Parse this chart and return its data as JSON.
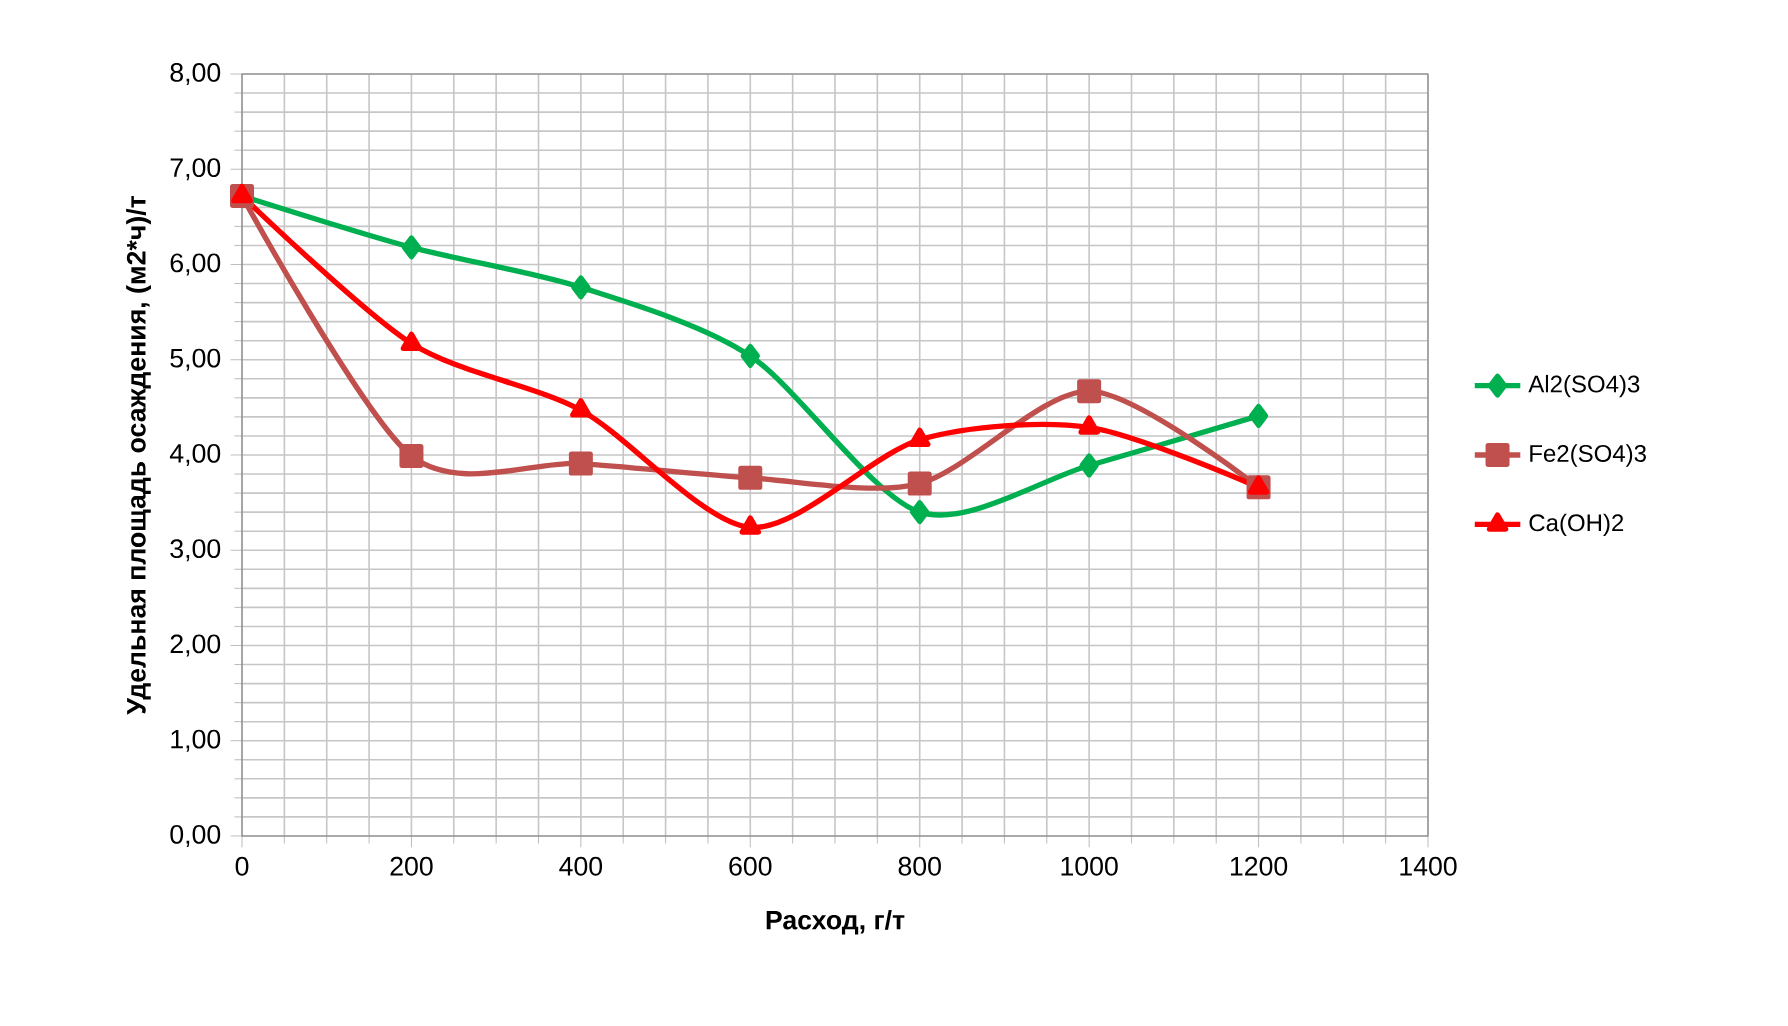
{
  "chart_data": {
    "type": "line",
    "xlabel": "Расход, г/т",
    "ylabel": "Удельная площадь осаждения, (м2*ч)/т",
    "x": [
      0,
      200,
      400,
      600,
      800,
      1000,
      1200
    ],
    "series": [
      {
        "name": "Al2(SO4)3",
        "color": "#00b050",
        "marker": "diamond",
        "values": [
          6.72,
          6.18,
          5.76,
          5.04,
          3.4,
          3.89,
          4.41
        ]
      },
      {
        "name": "Fe2(SO4)3",
        "color": "#c0504d",
        "marker": "square",
        "values": [
          6.72,
          3.99,
          3.91,
          3.76,
          3.7,
          4.67,
          3.66
        ]
      },
      {
        "name": "Ca(OH)2",
        "color": "#ff0000",
        "marker": "triangle",
        "values": [
          6.72,
          5.17,
          4.47,
          3.24,
          4.16,
          4.29,
          3.66
        ]
      }
    ],
    "xlim": [
      0,
      1400
    ],
    "xticks": [
      0,
      200,
      400,
      600,
      800,
      1000,
      1200,
      1400
    ],
    "ylim": [
      0,
      8
    ],
    "yticks": [
      {
        "value": 0,
        "label": "0,00"
      },
      {
        "value": 1,
        "label": "1,00"
      },
      {
        "value": 2,
        "label": "2,00"
      },
      {
        "value": 3,
        "label": "3,00"
      },
      {
        "value": 4,
        "label": "4,00"
      },
      {
        "value": 5,
        "label": "5,00"
      },
      {
        "value": 6,
        "label": "6,00"
      },
      {
        "value": 7,
        "label": "7,00"
      },
      {
        "value": 8,
        "label": "8,00"
      }
    ],
    "grid": true,
    "legend": "right",
    "line_style": "solid"
  }
}
